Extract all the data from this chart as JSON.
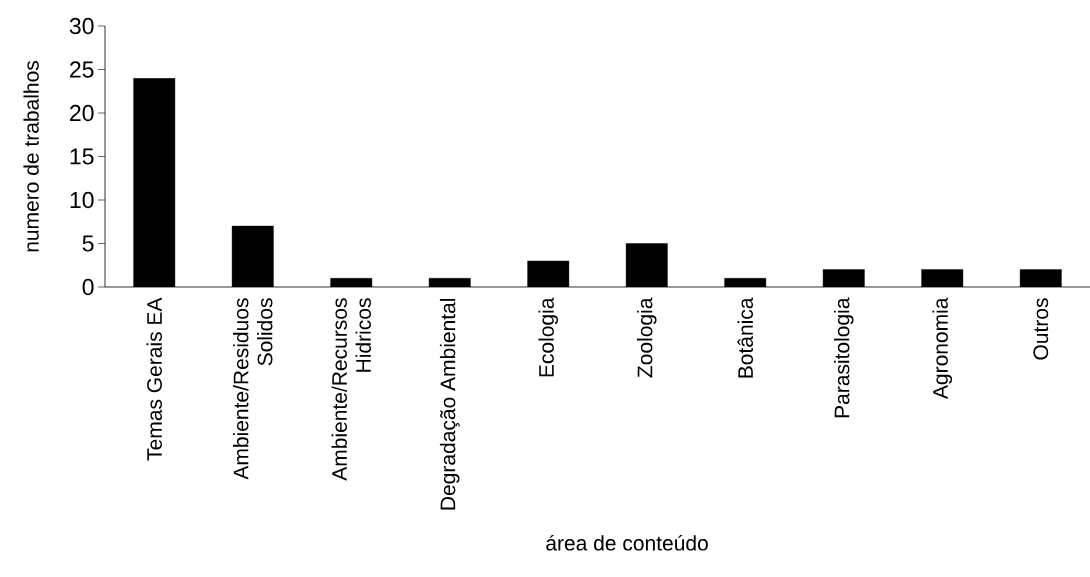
{
  "chart_data": {
    "type": "bar",
    "categories": [
      "Temas Gerais EA",
      "Ambiente/Residuos Solidos",
      "Ambiente/Recursos Hidricos",
      "Degradação Ambiental",
      "Ecologia",
      "Zoologia",
      "Botânica",
      "Parasitologia",
      "Agronomia",
      "Outros"
    ],
    "values": [
      24,
      7,
      1,
      1,
      3,
      5,
      1,
      2,
      2,
      2
    ],
    "color": "#000000",
    "xlabel": "área de conteúdo",
    "ylabel": "numero de trabalhos",
    "ylim": [
      0,
      30
    ],
    "yticks": [
      0,
      5,
      10,
      15,
      20,
      25,
      30
    ]
  }
}
